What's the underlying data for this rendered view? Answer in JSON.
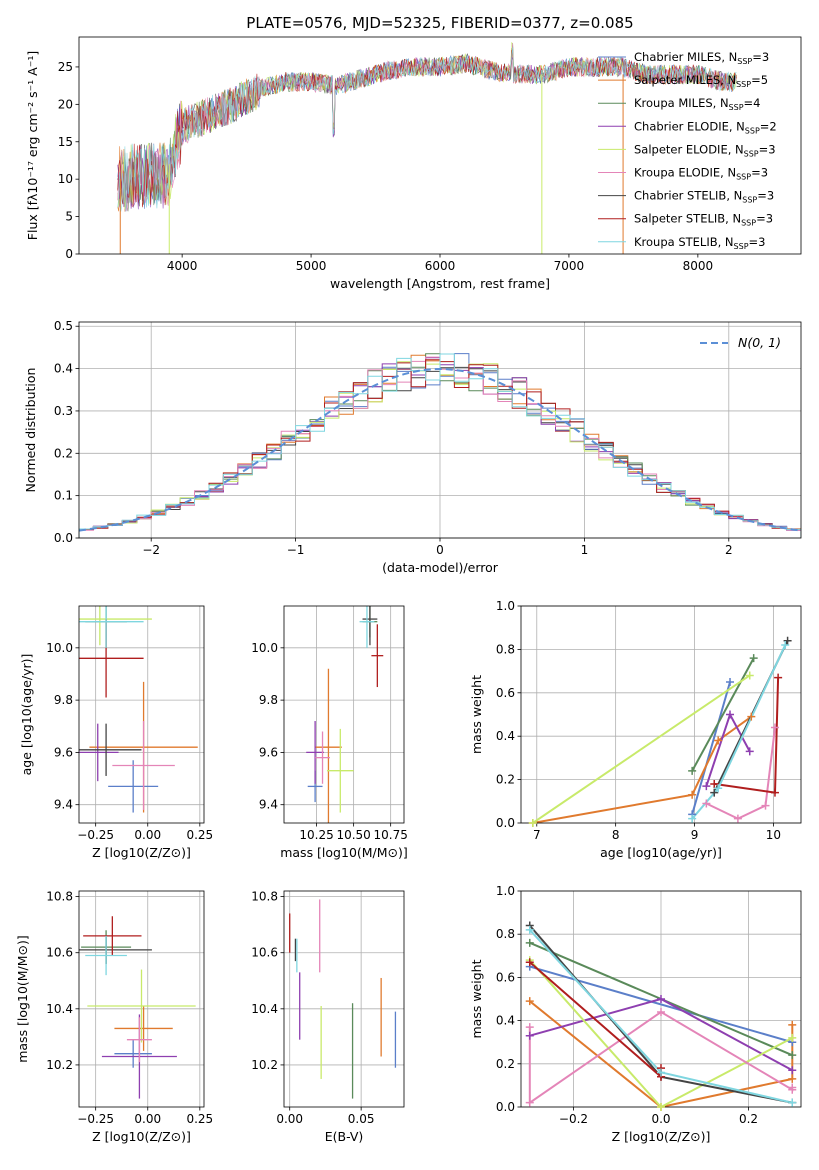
{
  "figure_title": "PLATE=0576, MJD=52325, FIBERID=0377, z=0.085",
  "colors": [
    "#5b7fc9",
    "#e07a2e",
    "#5a8a5a",
    "#8e3fb0",
    "#c8ea6a",
    "#e485b8",
    "#444444",
    "#b01e1e",
    "#7fd6e0"
  ],
  "chart_data": [
    {
      "id": "spectrum",
      "type": "line",
      "title": "PLATE=0576, MJD=52325, FIBERID=0377, z=0.085",
      "xlabel": "wavelength [Angstrom, rest frame]",
      "ylabel": "Flux [fλ10⁻¹⁷ erg cm⁻² s⁻¹ A⁻¹]",
      "xlim": [
        3200,
        8800
      ],
      "ylim": [
        0,
        29
      ],
      "xticks": [
        4000,
        5000,
        6000,
        7000,
        8000
      ],
      "yticks": [
        0,
        5,
        10,
        15,
        20,
        25
      ],
      "grid": false,
      "legend": "upper right",
      "series": [
        {
          "name": "Chabrier MILES, N_SSP=3"
        },
        {
          "name": "Salpeter MILES, N_SSP=5"
        },
        {
          "name": "Kroupa MILES, N_SSP=4"
        },
        {
          "name": "Chabrier ELODIE, N_SSP=2"
        },
        {
          "name": "Salpeter ELODIE, N_SSP=3"
        },
        {
          "name": "Kroupa ELODIE, N_SSP=3"
        },
        {
          "name": "Chabrier STELIB, N_SSP=3"
        },
        {
          "name": "Salpeter STELIB, N_SSP=3"
        },
        {
          "name": "Kroupa STELIB, N_SSP=3"
        }
      ],
      "continuum": {
        "x": [
          3500,
          3700,
          3900,
          3920,
          4000,
          4200,
          4400,
          4600,
          4800,
          5000,
          5200,
          5400,
          5600,
          5800,
          6000,
          6200,
          6400,
          6600,
          6800,
          7000,
          7200,
          7400,
          7600,
          7800,
          8000,
          8200,
          8300
        ],
        "y": [
          10,
          10.5,
          10.5,
          13,
          17,
          18.5,
          20,
          22,
          23,
          23,
          22.5,
          23.5,
          24.5,
          25,
          25,
          25.5,
          24.5,
          24,
          24,
          25,
          25,
          25,
          24,
          24,
          24,
          23,
          23
        ]
      }
    },
    {
      "id": "residual_hist",
      "type": "bar",
      "xlabel": "(data-model)/error",
      "ylabel": "Normed distribution",
      "xlim": [
        -2.5,
        2.5
      ],
      "ylim": [
        0,
        0.51
      ],
      "xticks": [
        -2,
        -1,
        0,
        1,
        2
      ],
      "yticks": [
        0.0,
        0.1,
        0.2,
        0.3,
        0.4,
        0.5
      ],
      "grid": true,
      "legend": "upper right",
      "reference": {
        "name": "N(0, 1)",
        "sigma": 1
      },
      "bin_width": 0.1
    },
    {
      "id": "age_vs_Z",
      "type": "scatter",
      "xlabel": "Z [log10(Z/Z⊙)]",
      "ylabel": "age  [log10(age/yr)]",
      "xlim": [
        -0.33,
        0.27
      ],
      "ylim": [
        9.33,
        10.16
      ],
      "xticks": [
        -0.25,
        0.0,
        0.25
      ],
      "yticks": [
        9.4,
        9.6,
        9.8,
        10.0
      ],
      "grid": true,
      "points": [
        {
          "x": -0.07,
          "y": 9.47,
          "xerr": 0.12,
          "yerr": 0.1
        },
        {
          "x": -0.02,
          "y": 9.62,
          "xerr": 0.26,
          "yerr": 0.25
        },
        {
          "x": -0.2,
          "y": 10.1,
          "xerr": 0.1,
          "yerr": 0.1
        },
        {
          "x": -0.24,
          "y": 9.6,
          "xerr": 0.1,
          "yerr": 0.11
        },
        {
          "x": -0.23,
          "y": 10.11,
          "xerr": 0.25,
          "yerr": 0.1
        },
        {
          "x": -0.02,
          "y": 9.55,
          "xerr": 0.15,
          "yerr": 0.17
        },
        {
          "x": -0.2,
          "y": 9.61,
          "xerr": 0.17,
          "yerr": 0.1
        },
        {
          "x": -0.2,
          "y": 9.96,
          "xerr": 0.18,
          "yerr": 0.15
        },
        {
          "x": -0.2,
          "y": 10.1,
          "xerr": 0.18,
          "yerr": 0.1
        }
      ]
    },
    {
      "id": "age_vs_mass",
      "type": "scatter",
      "xlabel": "mass [log10(M/M⊙)]",
      "ylabel": "",
      "xlim": [
        10.03,
        10.84
      ],
      "ylim": [
        9.33,
        10.16
      ],
      "xticks": [
        10.25,
        10.5,
        10.75
      ],
      "yticks": [
        9.4,
        9.6,
        9.8,
        10.0
      ],
      "grid": true,
      "points": [
        {
          "x": 10.24,
          "y": 9.47,
          "xerr": 0.05,
          "yerr": 0.06
        },
        {
          "x": 10.33,
          "y": 9.62,
          "xerr": 0.09,
          "yerr": 0.3
        },
        {
          "x": 10.61,
          "y": 10.1,
          "xerr": 0.05,
          "yerr": 0.06
        },
        {
          "x": 10.24,
          "y": 9.6,
          "xerr": 0.06,
          "yerr": 0.12
        },
        {
          "x": 10.41,
          "y": 9.53,
          "xerr": 0.09,
          "yerr": 0.16
        },
        {
          "x": 10.29,
          "y": 9.58,
          "xerr": 0.05,
          "yerr": 0.1
        },
        {
          "x": 10.61,
          "y": 10.11,
          "xerr": 0.05,
          "yerr": 0.1
        },
        {
          "x": 10.66,
          "y": 9.97,
          "xerr": 0.04,
          "yerr": 0.12
        },
        {
          "x": 10.59,
          "y": 10.1,
          "xerr": 0.05,
          "yerr": 0.1
        }
      ]
    },
    {
      "id": "massweight_vs_age",
      "type": "line",
      "xlabel": "age  [log10(age/yr)]",
      "ylabel": "mass weight",
      "xlim": [
        6.8,
        10.35
      ],
      "ylim": [
        0.0,
        1.0
      ],
      "xticks": [
        7,
        8,
        9,
        10
      ],
      "yticks": [
        0.0,
        0.2,
        0.4,
        0.6,
        0.8,
        1.0
      ],
      "grid": true,
      "series": [
        {
          "x": [
            8.97,
            9.45
          ],
          "y": [
            0.04,
            0.65
          ]
        },
        {
          "x": [
            6.95,
            8.97,
            9.3,
            9.72
          ],
          "y": [
            0.0,
            0.13,
            0.38,
            0.49
          ]
        },
        {
          "x": [
            8.97,
            9.75
          ],
          "y": [
            0.24,
            0.76
          ]
        },
        {
          "x": [
            9.15,
            9.45,
            9.7
          ],
          "y": [
            0.17,
            0.5,
            0.33
          ]
        },
        {
          "x": [
            6.95,
            9.7
          ],
          "y": [
            0.0,
            0.68
          ]
        },
        {
          "x": [
            9.15,
            9.55,
            9.9,
            10.02
          ],
          "y": [
            0.09,
            0.02,
            0.08,
            0.44
          ]
        },
        {
          "x": [
            9.25,
            10.18
          ],
          "y": [
            0.14,
            0.84
          ]
        },
        {
          "x": [
            9.25,
            10.02,
            10.06
          ],
          "y": [
            0.18,
            0.14,
            0.67
          ]
        },
        {
          "x": [
            8.97,
            9.3,
            10.15
          ],
          "y": [
            0.02,
            0.16,
            0.82
          ]
        }
      ]
    },
    {
      "id": "mass_vs_Z",
      "type": "scatter",
      "xlabel": "Z [log10(Z/Z⊙)]",
      "ylabel": "mass [log10(M/M⊙)]",
      "xlim": [
        -0.33,
        0.27
      ],
      "ylim": [
        10.05,
        10.82
      ],
      "xticks": [
        -0.25,
        0.0,
        0.25
      ],
      "yticks": [
        10.2,
        10.4,
        10.6,
        10.8
      ],
      "grid": true,
      "points": [
        {
          "x": -0.07,
          "y": 10.24,
          "xerr": 0.09,
          "yerr": 0.05
        },
        {
          "x": -0.02,
          "y": 10.33,
          "xerr": 0.14,
          "yerr": 0.08
        },
        {
          "x": -0.2,
          "y": 10.62,
          "xerr": 0.12,
          "yerr": 0.06
        },
        {
          "x": -0.04,
          "y": 10.23,
          "xerr": 0.18,
          "yerr": 0.15
        },
        {
          "x": -0.03,
          "y": 10.41,
          "xerr": 0.26,
          "yerr": 0.13
        },
        {
          "x": -0.04,
          "y": 10.29,
          "xerr": 0.06,
          "yerr": 0.08
        },
        {
          "x": -0.2,
          "y": 10.61,
          "xerr": 0.22,
          "yerr": 0.05
        },
        {
          "x": -0.17,
          "y": 10.66,
          "xerr": 0.14,
          "yerr": 0.07
        },
        {
          "x": -0.2,
          "y": 10.59,
          "xerr": 0.1,
          "yerr": 0.07
        }
      ]
    },
    {
      "id": "mass_vs_ebv",
      "type": "scatter",
      "xlabel": "E(B-V)",
      "ylabel": "",
      "xlim": [
        -0.004,
        0.08
      ],
      "ylim": [
        10.05,
        10.82
      ],
      "xticks": [
        0.0,
        0.05
      ],
      "yticks": [
        10.2,
        10.4,
        10.6,
        10.8
      ],
      "grid": true,
      "points": [
        {
          "x": 0.074,
          "y": 10.29,
          "xerr": 0,
          "yerr": 0.1
        },
        {
          "x": 0.064,
          "y": 10.37,
          "xerr": 0,
          "yerr": 0.14
        },
        {
          "x": 0.044,
          "y": 10.25,
          "xerr": 0,
          "yerr": 0.17
        },
        {
          "x": 0.007,
          "y": 10.41,
          "xerr": 0,
          "yerr": 0.12
        },
        {
          "x": 0.022,
          "y": 10.28,
          "xerr": 0,
          "yerr": 0.13
        },
        {
          "x": 0.021,
          "y": 10.66,
          "xerr": 0,
          "yerr": 0.13
        },
        {
          "x": 0.004,
          "y": 10.61,
          "xerr": 0,
          "yerr": 0.04
        },
        {
          "x": 0.0,
          "y": 10.67,
          "xerr": 0,
          "yerr": 0.07
        },
        {
          "x": 0.005,
          "y": 10.59,
          "xerr": 0,
          "yerr": 0.06
        }
      ]
    },
    {
      "id": "massweight_vs_Z",
      "type": "line",
      "xlabel": "Z [log10(Z/Z⊙)]",
      "ylabel": "mass weight",
      "xlim": [
        -0.32,
        0.32
      ],
      "ylim": [
        0.0,
        1.0
      ],
      "xticks": [
        -0.2,
        0.0,
        0.2
      ],
      "yticks": [
        0.0,
        0.2,
        0.4,
        0.6,
        0.8,
        1.0
      ],
      "grid": true,
      "series": [
        {
          "x": [
            -0.3,
            0.3
          ],
          "y": [
            0.65,
            0.3
          ]
        },
        {
          "x": [
            -0.3,
            0.0,
            0.3,
            0.3
          ],
          "y": [
            0.49,
            0.0,
            0.13,
            0.38
          ]
        },
        {
          "x": [
            -0.3,
            0.3
          ],
          "y": [
            0.76,
            0.24
          ]
        },
        {
          "x": [
            -0.3,
            0.0,
            0.3
          ],
          "y": [
            0.33,
            0.5,
            0.17
          ]
        },
        {
          "x": [
            -0.3,
            0.0,
            0.3
          ],
          "y": [
            0.68,
            0.0,
            0.32
          ]
        },
        {
          "x": [
            -0.3,
            -0.3,
            0.0,
            0.3,
            0.3
          ],
          "y": [
            0.37,
            0.02,
            0.44,
            0.08,
            0.09
          ]
        },
        {
          "x": [
            -0.3,
            0.0,
            0.3
          ],
          "y": [
            0.84,
            0.14,
            0.02
          ]
        },
        {
          "x": [
            -0.3,
            0.0,
            0.0
          ],
          "y": [
            0.67,
            0.14,
            0.18
          ]
        },
        {
          "x": [
            -0.3,
            0.0,
            0.3
          ],
          "y": [
            0.82,
            0.16,
            0.02
          ]
        }
      ]
    }
  ]
}
